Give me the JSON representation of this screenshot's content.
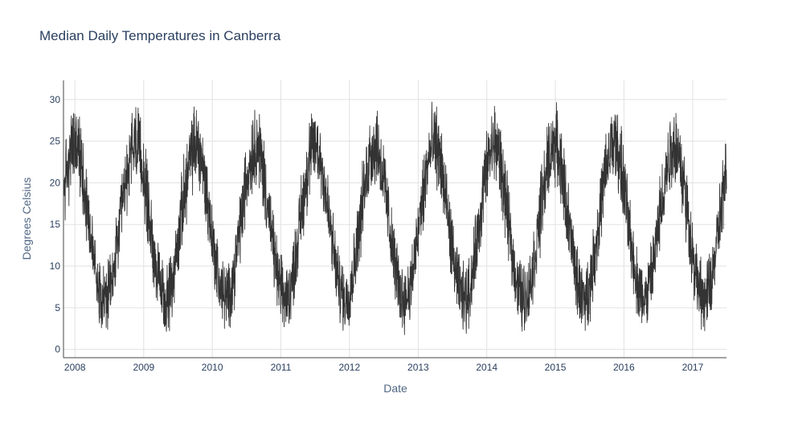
{
  "chart_data": {
    "type": "line",
    "title": "Median Daily Temperatures in Canberra",
    "xlabel": "Date",
    "ylabel": "Degrees Celsius",
    "xlim": [
      "2007-11-01",
      "2017-06-30"
    ],
    "ylim": [
      -1,
      32.3
    ],
    "x_ticks": [
      "2008",
      "2009",
      "2010",
      "2011",
      "2012",
      "2013",
      "2014",
      "2015",
      "2016",
      "2017"
    ],
    "y_ticks": [
      0,
      5,
      10,
      15,
      20,
      25,
      30
    ],
    "grid": true,
    "legend": "none",
    "line_color": "#333333",
    "series": [
      {
        "x_start": "2007-11-01",
        "x_step_days": 5,
        "values": [
          18.6,
          20.0,
          20.3,
          21.0,
          21.5,
          22.0,
          22.6,
          23.3,
          24.0,
          24.0,
          24.4,
          24.5,
          24.6,
          24.9,
          24.3,
          24.0,
          23.6,
          23.4,
          22.8,
          22.2,
          21.9,
          20.7,
          20.1,
          19.0,
          18.4,
          17.7,
          16.6,
          15.3,
          14.5,
          13.6,
          12.8,
          12.1,
          11.2,
          10.8,
          9.9,
          9.5,
          8.4,
          8.0,
          7.2,
          7.0,
          7.2,
          6.9,
          6.2,
          6.2,
          5.8,
          6.2,
          6.3,
          6.3,
          6.4,
          7.3,
          6.9,
          7.7,
          8.3,
          9.2,
          9.4,
          10.8,
          11.3,
          12.2,
          13.3,
          13.5,
          14.8,
          15.5,
          16.2,
          17.3,
          18.2,
          19.0,
          19.6,
          20.2,
          21.3,
          21.7,
          22.0,
          22.5,
          23.7,
          24.1,
          23.9,
          24.9,
          24.6,
          24.5,
          24.8,
          24.5,
          23.8,
          23.5,
          23.1,
          22.7,
          22.0,
          21.2,
          20.3,
          19.5,
          18.7,
          17.8,
          17.0,
          16.0,
          15.2,
          14.6,
          13.2,
          12.5,
          12.0,
          11.1,
          10.6,
          9.4,
          8.7,
          8.4,
          7.8,
          7.1,
          6.8,
          7.0,
          6.4,
          5.8,
          6.0,
          5.7,
          5.8,
          6.6,
          6.5,
          6.7,
          7.1,
          7.7,
          8.2,
          9.0,
          9.5,
          10.5,
          11.5,
          12.2,
          12.6,
          13.7,
          14.9,
          15.7,
          16.6,
          17.2,
          18.2,
          18.8,
          19.6,
          20.3,
          21.0,
          21.5,
          22.3,
          23.0,
          23.3,
          23.4,
          23.9,
          24.5,
          24.5,
          24.7,
          24.2,
          24.6,
          24.2,
          23.4,
          23.4,
          22.8,
          22.1,
          21.2,
          20.8,
          19.6,
          19.0,
          18.2,
          17.2,
          16.3,
          15.6,
          14.7,
          13.8,
          12.9,
          12.3,
          11.3,
          10.6,
          10.0,
          9.4,
          8.4,
          8.1,
          7.7,
          7.0,
          6.8,
          6.7,
          6.8,
          6.3,
          6.1,
          5.9,
          6.4,
          6.3,
          7.0,
          7.4,
          7.6,
          8.1,
          8.8,
          9.3,
          10.6,
          11.0,
          12.3,
          13.0,
          14.0,
          14.5,
          15.5,
          16.2,
          17.2,
          17.8,
          19.0,
          19.6,
          20.6,
          21.0,
          21.5,
          22.5,
          22.4,
          23.3,
          23.5,
          24.0,
          24.2,
          24.6,
          24.8,
          24.7,
          24.3,
          23.9,
          23.9,
          23.0,
          22.7,
          21.9,
          21.1,
          20.5,
          19.3,
          18.4,
          17.8,
          17.0,
          16.1,
          15.0,
          14.1,
          13.1,
          12.7,
          11.6,
          10.8,
          10.1,
          9.8,
          8.8,
          7.8,
          7.6,
          7.3,
          6.8,
          6.5,
          6.6,
          6.1,
          6.1,
          6.0,
          6.4,
          6.7,
          6.7,
          7.0,
          7.6,
          8.3,
          8.7,
          9.3,
          10.5,
          11.1,
          11.8,
          12.6,
          13.6,
          14.6,
          15.7,
          16.4,
          17.1,
          17.8,
          18.8,
          19.7,
          20.4,
          20.9,
          21.6,
          22.7,
          22.9,
          23.2,
          23.7,
          24.1,
          24.4,
          24.3,
          24.6,
          24.3,
          24.2,
          23.8,
          23.3,
          23.1,
          22.8,
          21.8,
          21.1,
          20.7,
          19.8,
          19.0,
          18.0,
          16.9,
          16.1,
          15.4,
          14.7,
          13.9,
          12.9,
          12.2,
          11.2,
          10.6,
          10.1,
          9.1,
          8.8,
          7.7,
          7.5,
          7.4,
          6.9,
          6.6,
          6.3,
          5.8,
          6.1,
          6.4,
          6.0,
          6.2,
          6.9,
          7.1,
          8.0,
          8.4,
          9.1,
          9.9,
          10.6,
          11.6,
          12.2,
          13.3,
          14.1,
          14.7,
          15.7,
          16.2,
          17.3,
          18.0,
          19.2,
          19.4,
          20.7,
          21.3,
          22.1,
          22.4,
          23.2,
          23.2,
          23.9,
          24.1,
          24.4,
          24.3,
          24.8,
          24.5,
          24.5,
          24.3,
          23.4,
          22.9,
          22.0,
          21.8,
          20.9,
          19.8,
          19.3,
          18.5,
          17.7,
          16.6,
          15.9,
          14.8,
          14.1,
          12.9,
          12.4,
          11.4,
          10.8,
          10.0,
          9.5,
          9.0,
          8.2,
          7.5,
          7.0,
          7.1,
          6.5,
          6.0,
          6.1,
          6.4,
          6.0,
          6.4,
          6.5,
          6.8,
          7.3,
          7.3,
          8.2,
          8.8,
          9.4,
          10.2,
          10.8,
          11.6,
          12.5,
          13.6,
          14.1,
          15.4,
          16.5,
          17.0,
          18.1,
          18.6,
          19.5,
          20.4,
          20.8,
          21.7,
          22.5,
          23.0,
          23.2,
          23.7,
          24.2,
          24.1,
          24.3,
          24.8,
          24.8,
          24.6,
          24.1,
          23.4,
          23.6,
          22.6,
          21.9,
          21.4,
          20.5,
          19.6,
          18.6,
          17.7,
          16.9,
          15.9,
          15.1,
          14.4,
          13.5,
          12.6,
          11.6,
          11.1,
          10.1,
          9.8,
          9.0,
          8.3,
          7.8,
          7.7,
          6.8,
          6.6,
          6.2,
          6.6,
          6.4,
          5.8,
          5.9,
          5.8,
          6.8,
          6.8,
          7.5,
          7.5,
          8.0,
          8.8,
          9.4,
          10.7,
          11.4,
          12.5,
          12.9,
          13.7,
          14.5,
          15.4,
          16.6,
          17.4,
          18.5,
          18.9,
          19.8,
          20.7,
          20.8,
          21.7,
          22.3,
          23.3,
          23.5,
          23.7,
          23.9,
          24.2,
          24.7,
          24.9,
          24.8,
          24.1,
          23.9,
          23.4,
          23.2,
          22.3,
          21.4,
          20.6,
          20.2,
          19.2,
          18.1,
          17.5,
          16.3,
          15.9,
          14.6,
          13.9,
          13.3,
          11.9,
          11.3,
          10.4,
          9.9,
          9.4,
          8.5,
          8.2,
          7.4,
          6.8,
          6.9,
          6.9,
          6.3,
          6.0,
          6.3,
          6.4,
          6.4,
          6.4,
          6.6,
          6.8,
          7.4,
          8.0,
          8.8,
          9.3,
          10.0,
          10.6,
          11.5,
          12.1,
          13.1,
          14.2,
          14.6,
          15.7,
          16.7,
          17.6,
          18.2,
          18.8,
          19.8,
          20.3,
          21.3,
          22.0,
          22.6,
          23.1,
          23.1,
          23.9,
          24.5,
          24.2,
          24.9,
          24.6,
          24.6,
          24.4,
          23.9,
          23.2,
          23.0,
          22.5,
          21.5,
          20.9,
          20.2,
          19.4,
          18.4,
          17.6,
          16.8,
          15.8,
          15.0,
          14.1,
          13.4,
          12.4,
          11.7,
          11.0,
          10.1,
          9.3,
          8.6,
          8.1,
          7.8,
          7.3,
          7.1,
          6.5,
          6.4,
          6.2,
          5.9,
          6.0,
          6.2,
          6.4,
          6.6,
          7.4,
          7.9,
          8.1,
          9.0,
          9.4,
          10.5,
          10.9,
          12.0,
          12.8,
          13.5,
          14.5,
          15.2,
          16.2,
          17.2,
          18.1,
          18.7,
          19.5,
          20.3,
          21.0,
          21.6,
          22.4,
          22.7,
          23.1,
          24.0,
          23.9,
          24.6,
          24.3,
          24.8,
          24.9,
          24.7,
          24.2,
          23.8,
          23.1,
          23.0,
          22.4,
          21.5,
          20.7,
          19.7,
          18.8,
          18.4,
          17.4,
          16.3,
          15.6,
          14.4,
          13.8,
          12.9,
          12.2,
          11.4,
          10.7,
          10.0,
          9.1,
          8.5,
          8.0,
          7.4,
          7.4,
          6.8,
          6.4,
          6.5,
          6.2,
          6.3,
          6.4,
          6.0,
          6.4,
          6.8,
          7.4,
          7.7,
          8.5,
          8.8,
          9.6,
          10.3,
          11.0,
          11.7,
          12.7,
          13.7,
          14.7,
          15.1,
          16.4,
          17.0,
          18.1,
          18.7,
          19.5,
          20.0,
          20.8,
          21.7,
          22.1,
          22.6,
          23.6,
          24.0,
          23.9,
          24.1,
          24.5,
          25.0,
          24.4,
          24.3,
          24.4,
          24.1,
          23.6,
          22.7,
          22.4,
          21.3,
          20.7,
          19.8,
          19.3,
          18.3,
          17.4,
          16.5,
          15.5,
          14.9,
          13.9,
          12.9,
          12.1,
          11.2,
          10.4,
          10.2,
          9.4,
          8.6,
          8.2,
          7.3,
          7.1,
          6.7,
          6.8,
          6.3,
          6.2,
          6.4,
          6.2,
          6.0,
          6.3,
          6.9,
          7.3,
          7.3,
          7.6,
          8.2,
          9.2,
          9.9,
          10.5,
          11.1,
          12.2,
          13.4,
          13.9,
          15.0,
          15.8,
          16.5,
          17.3,
          18.1,
          19.0,
          19.8,
          20.8,
          21.3,
          21.6,
          22.3,
          22.8,
          23.3,
          24.1,
          24.2,
          24.5,
          24.4,
          24.9,
          24.5,
          24.6,
          23.7,
          23.4,
          23.3,
          22.6,
          21.6,
          21.4,
          20.3,
          19.6,
          18.5,
          17.8,
          16.8,
          16.0,
          14.9,
          14.0,
          13.5,
          12.6,
          11.8,
          11.3,
          10.2,
          9.8,
          8.7,
          8.1,
          7.9,
          7.2,
          7.1,
          6.9,
          6.3,
          5.7,
          6.2,
          6.2,
          6.0
        ]
      }
    ]
  }
}
